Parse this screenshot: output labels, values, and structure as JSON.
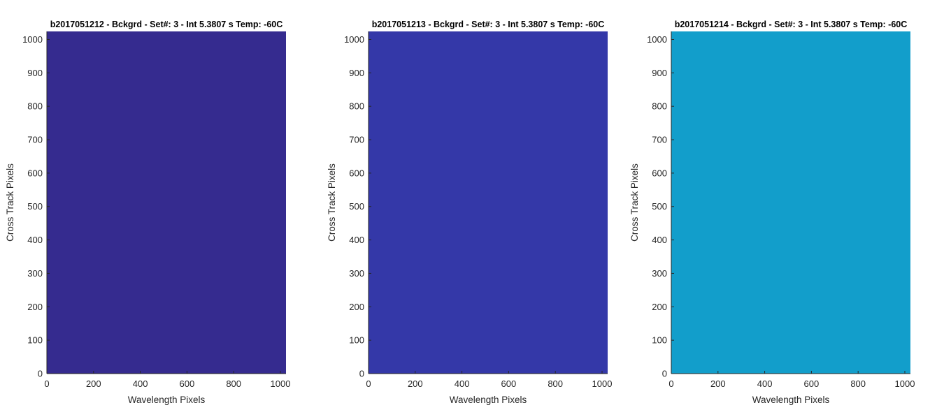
{
  "chart_data": [
    {
      "type": "heatmap",
      "title": "b2017051212 - Bckgrd - Set#: 3 - Int 5.3807 s Temp: -60C",
      "xlabel": "Wavelength Pixels",
      "ylabel": "Cross Track Pixels",
      "xlim": [
        0,
        1024
      ],
      "ylim": [
        0,
        1024
      ],
      "xticks": [
        0,
        200,
        400,
        600,
        800,
        1000
      ],
      "yticks": [
        0,
        100,
        200,
        300,
        400,
        500,
        600,
        700,
        800,
        900,
        1000
      ],
      "fill_color": "#352b8f",
      "grid": false
    },
    {
      "type": "heatmap",
      "title": "b2017051213 - Bckgrd - Set#: 3 - Int 5.3807 s Temp: -60C",
      "xlabel": "Wavelength Pixels",
      "ylabel": "Cross Track Pixels",
      "xlim": [
        0,
        1024
      ],
      "ylim": [
        0,
        1024
      ],
      "xticks": [
        0,
        200,
        400,
        600,
        800,
        1000
      ],
      "yticks": [
        0,
        100,
        200,
        300,
        400,
        500,
        600,
        700,
        800,
        900,
        1000
      ],
      "fill_color": "#3438a8",
      "grid": false
    },
    {
      "type": "heatmap",
      "title": "b2017051214 - Bckgrd - Set#: 3 - Int 5.3807 s Temp: -60C",
      "xlabel": "Wavelength Pixels",
      "ylabel": "Cross Track Pixels",
      "xlim": [
        0,
        1024
      ],
      "ylim": [
        0,
        1024
      ],
      "xticks": [
        0,
        200,
        400,
        600,
        800,
        1000
      ],
      "yticks": [
        0,
        100,
        200,
        300,
        400,
        500,
        600,
        700,
        800,
        900,
        1000
      ],
      "fill_color": "#129ecb",
      "grid": false
    }
  ]
}
